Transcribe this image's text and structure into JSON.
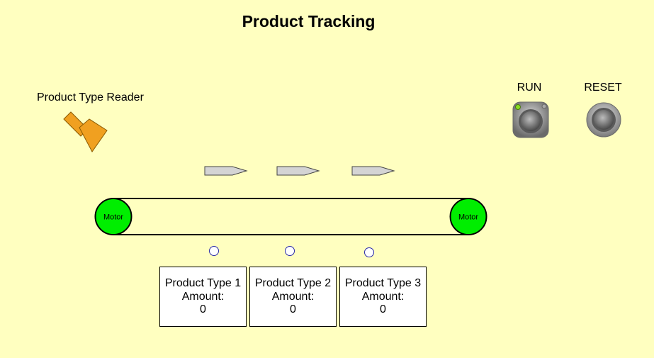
{
  "title": "Product Tracking",
  "reader": {
    "label": "Product Type Reader",
    "icon": "scanner-icon",
    "color": "#f0a020"
  },
  "controls": {
    "run": {
      "label": "RUN",
      "icon": "run-pushbutton",
      "indicator_color": "#88dd22"
    },
    "reset": {
      "label": "RESET",
      "icon": "reset-pushbutton"
    }
  },
  "conveyor": {
    "left_motor": "Motor",
    "right_motor": "Motor",
    "motor_color": "#00ee00"
  },
  "products": [
    {
      "label": "Product Type 1",
      "amount_label": "Amount:",
      "amount": "0"
    },
    {
      "label": "Product Type 2",
      "amount_label": "Amount:",
      "amount": "0"
    },
    {
      "label": "Product Type 3",
      "amount_label": "Amount:",
      "amount": "0"
    }
  ]
}
